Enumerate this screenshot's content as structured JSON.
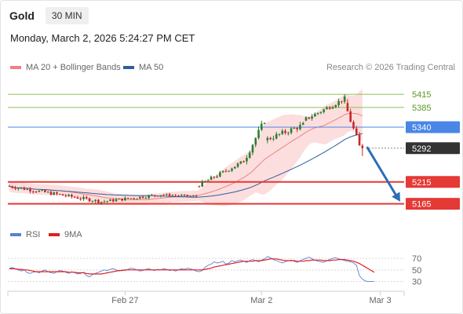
{
  "header": {
    "instrument": "Gold",
    "timeframe": "30 MIN",
    "datetime": "Monday, March 2, 2026 5:24:27 PM CET"
  },
  "legend": {
    "ma20_label": "MA 20 + Bollinger Bands",
    "ma20_color": "#f08080",
    "ma50_label": "MA 50",
    "ma50_color": "#2f5e9e",
    "copyright": "Research © 2026 Trading Central"
  },
  "rsi_legend": {
    "rsi_label": "RSI",
    "rsi_color": "#5b7fd6",
    "ma_label": "9MA",
    "ma_color": "#e02020"
  },
  "colors": {
    "up": "#2e7d32",
    "down": "#c62828",
    "band_fill": "#fbd3d3",
    "resistance": "#8cc152",
    "pivot": "#4a86e8",
    "support": "#e53935",
    "last_price_tag": "#333333",
    "arrow": "#2f6db5"
  },
  "chart_data": [
    {
      "type": "candlestick",
      "title": "",
      "price_range": [
        5125,
        5460
      ],
      "x_axis": {
        "tick_labels": [
          "Feb 27",
          "Mar 2",
          "Mar 3"
        ],
        "tick_bar_index": [
          39,
          85,
          125
        ]
      },
      "levels": [
        {
          "label": "5415",
          "value": 5415,
          "kind": "resistance"
        },
        {
          "label": "5385",
          "value": 5385,
          "kind": "resistance"
        },
        {
          "label": "5340",
          "value": 5340,
          "kind": "pivot"
        },
        {
          "label": "5292",
          "value": 5292,
          "kind": "last"
        },
        {
          "label": "5215",
          "value": 5215,
          "kind": "support"
        },
        {
          "label": "5165",
          "value": 5165,
          "kind": "support"
        }
      ],
      "forecast_arrow": {
        "from_price": 5295,
        "to_price": 5170,
        "direction": "down"
      },
      "segments": [
        {
          "bars": 32,
          "start": 5206,
          "end": 5170,
          "wiggle": 8
        },
        {
          "bars": 20,
          "start": 5170,
          "end": 5186,
          "wiggle": 7
        },
        {
          "bars": 12,
          "start": 5186,
          "end": 5182,
          "wiggle": 5
        },
        {
          "bars": 16,
          "start": 5205,
          "end": 5262,
          "wiggle": 9
        },
        {
          "bars": 7,
          "start": 5262,
          "end": 5355,
          "wiggle": 14
        },
        {
          "bars": 13,
          "start": 5310,
          "end": 5345,
          "wiggle": 12
        },
        {
          "bars": 14,
          "start": 5355,
          "end": 5405,
          "wiggle": 10
        },
        {
          "bars": 5,
          "start": 5395,
          "end": 5295,
          "wiggle": 16
        }
      ]
    },
    {
      "type": "line",
      "title": "RSI",
      "y_ticks": [
        70,
        50,
        30
      ],
      "y_range": [
        20,
        85
      ],
      "series": [
        {
          "name": "RSI",
          "values": [
            53,
            54,
            52,
            50,
            48,
            50,
            45,
            44,
            46,
            47,
            45,
            48,
            50,
            47,
            45,
            44,
            47,
            49,
            48,
            46,
            44,
            47,
            45,
            43,
            44,
            46,
            40,
            38,
            42,
            44,
            46,
            48,
            50,
            49,
            51,
            52,
            50,
            48,
            50,
            49,
            51,
            53,
            52,
            50,
            48,
            49,
            51,
            52,
            50,
            49,
            51,
            50,
            52,
            51,
            49,
            50,
            48,
            50,
            52,
            51,
            53,
            52,
            50,
            48,
            47,
            49,
            55,
            58,
            60,
            64,
            62,
            63,
            65,
            60,
            62,
            66,
            64,
            66,
            67,
            65,
            63,
            66,
            68,
            66,
            64,
            67,
            69,
            73,
            71,
            68,
            66,
            64,
            62,
            64,
            66,
            67,
            65,
            63,
            66,
            68,
            70,
            72,
            69,
            67,
            65,
            64,
            63,
            66,
            68,
            70,
            71,
            69,
            68,
            66,
            65,
            64,
            62,
            58,
            40,
            34,
            31,
            30,
            30,
            30
          ]
        },
        {
          "name": "9MA",
          "values": [
            52,
            52,
            52,
            51,
            51,
            50,
            50,
            49,
            48,
            47,
            47,
            47,
            47,
            47,
            47,
            47,
            47,
            47,
            47,
            47,
            46,
            46,
            46,
            45,
            45,
            45,
            44,
            43,
            43,
            43,
            43,
            43,
            44,
            45,
            46,
            47,
            48,
            49,
            49,
            50,
            50,
            50,
            50,
            50,
            50,
            50,
            50,
            50,
            50,
            50,
            50,
            50,
            50,
            50,
            50,
            50,
            50,
            50,
            50,
            50,
            50,
            50,
            50,
            50,
            50,
            50,
            51,
            52,
            53,
            55,
            56,
            57,
            58,
            59,
            60,
            61,
            62,
            63,
            64,
            65,
            65,
            65,
            65,
            66,
            66,
            66,
            67,
            68,
            69,
            69,
            69,
            68,
            67,
            66,
            66,
            66,
            66,
            65,
            65,
            65,
            66,
            66,
            67,
            67,
            67,
            67,
            66,
            66,
            66,
            67,
            67,
            68,
            68,
            68,
            67,
            66,
            65,
            63,
            61,
            58,
            55,
            52,
            49,
            46
          ]
        }
      ]
    }
  ]
}
